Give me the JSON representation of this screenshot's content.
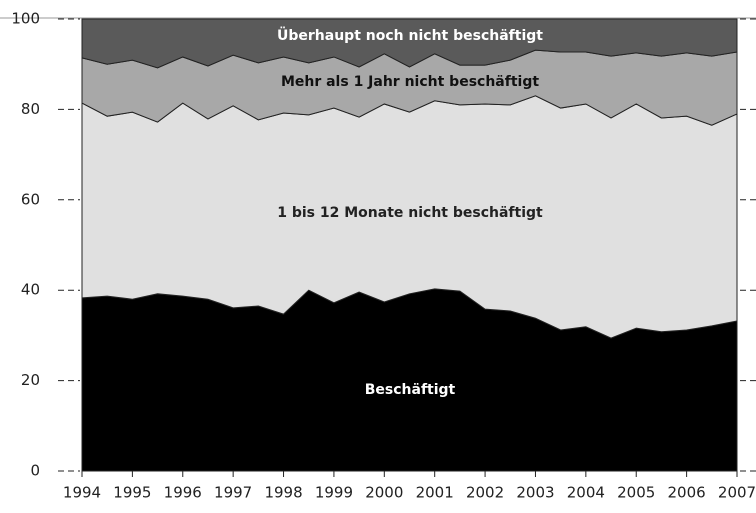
{
  "chart_data": {
    "type": "stacked_area",
    "x": [
      1994,
      1994.5,
      1995,
      1995.5,
      1996,
      1996.5,
      1997,
      1997.5,
      1998,
      1998.5,
      1999,
      1999.5,
      2000,
      2000.5,
      2001,
      2001.5,
      2002,
      2002.5,
      2003,
      2003.5,
      2004,
      2004.5,
      2005,
      2005.5,
      2006,
      2006.5,
      2007
    ],
    "series": [
      {
        "name": "Beschäftigt",
        "color": "#000000",
        "values": [
          38.3,
          38.7,
          38.0,
          39.2,
          38.7,
          38.0,
          36.1,
          36.5,
          34.7,
          40.0,
          37.2,
          39.6,
          37.4,
          39.2,
          40.3,
          39.8,
          35.8,
          35.4,
          33.8,
          31.2,
          31.9,
          29.4,
          31.6,
          30.8,
          31.2,
          32.1,
          33.2
        ]
      },
      {
        "name": "1 bis 12 Monate nicht beschäftigt",
        "color": "#e0e0e0",
        "values": [
          43.1,
          39.8,
          41.4,
          38.0,
          42.7,
          39.9,
          44.7,
          41.2,
          44.5,
          38.8,
          43.1,
          38.7,
          43.8,
          40.2,
          41.6,
          41.2,
          45.4,
          45.6,
          49.2,
          49.1,
          49.3,
          48.7,
          49.6,
          47.3,
          47.3,
          44.4,
          45.8
        ]
      },
      {
        "name": "Mehr als 1 Jahr nicht beschäftigt",
        "color": "#a8a8a8",
        "values": [
          10.0,
          11.5,
          11.5,
          12.0,
          10.2,
          11.7,
          11.2,
          12.6,
          12.4,
          11.5,
          11.3,
          11.1,
          11.1,
          10.0,
          10.4,
          8.8,
          8.6,
          9.9,
          10.1,
          12.4,
          11.5,
          13.7,
          11.3,
          13.7,
          14.0,
          15.3,
          13.7
        ]
      },
      {
        "name": "Überhaupt noch nicht beschäftigt",
        "color": "#5a5a5a",
        "values": [
          8.6,
          10.0,
          9.1,
          10.8,
          8.4,
          10.4,
          8.0,
          9.7,
          8.4,
          9.7,
          8.4,
          10.6,
          7.7,
          10.6,
          7.7,
          10.2,
          10.2,
          9.1,
          6.9,
          7.3,
          7.3,
          8.2,
          7.5,
          8.2,
          7.5,
          8.2,
          7.3
        ]
      }
    ],
    "xlim": [
      1994,
      2007
    ],
    "xticks": [
      1994,
      1995,
      1996,
      1997,
      1998,
      1999,
      2000,
      2001,
      2002,
      2003,
      2004,
      2005,
      2006,
      2007
    ],
    "ylim": [
      0,
      100
    ],
    "yticks": [
      0,
      20,
      40,
      60,
      80,
      100
    ]
  }
}
